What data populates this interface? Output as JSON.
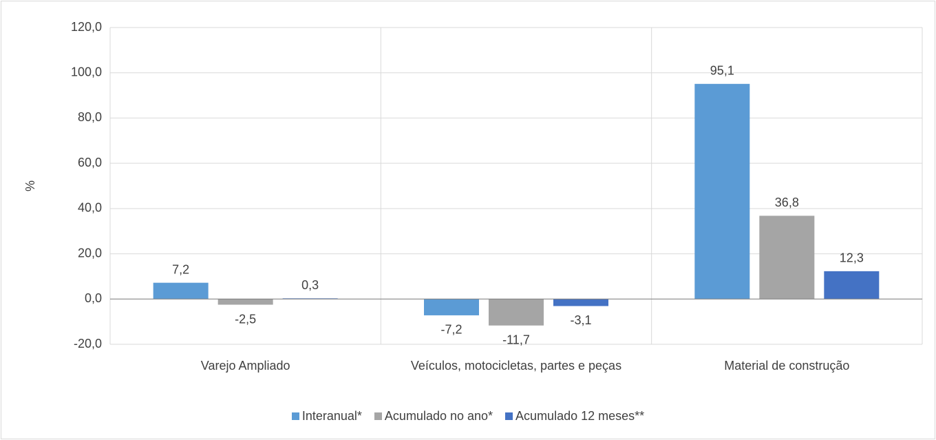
{
  "chart_data": {
    "type": "bar",
    "y_label": "%",
    "categories": [
      "Varejo Ampliado",
      "Veículos, motocicletas, partes e peças",
      "Material de construção"
    ],
    "series": [
      {
        "name": "Interanual*",
        "color": "#5b9bd5",
        "values": [
          7.2,
          -7.2,
          95.1
        ],
        "value_labels": [
          "7,2",
          "-7,2",
          "95,1"
        ]
      },
      {
        "name": "Acumulado no ano*",
        "color": "#a5a5a5",
        "values": [
          -2.5,
          -11.7,
          36.8
        ],
        "value_labels": [
          "-2,5",
          "-11,7",
          "36,8"
        ]
      },
      {
        "name": "Acumulado 12 meses**",
        "color": "#4472c4",
        "values": [
          0.3,
          -3.1,
          12.3
        ],
        "value_labels": [
          "0,3",
          "-3,1",
          "12,3"
        ]
      }
    ],
    "ylim": [
      -20,
      120
    ],
    "yticks": [
      {
        "value": -20,
        "label": "-20,0"
      },
      {
        "value": 0,
        "label": "0,0"
      },
      {
        "value": 20,
        "label": "20,0"
      },
      {
        "value": 40,
        "label": "40,0"
      },
      {
        "value": 60,
        "label": "60,0"
      },
      {
        "value": 80,
        "label": "80,0"
      },
      {
        "value": 100,
        "label": "100,0"
      },
      {
        "value": 120,
        "label": "120,0"
      }
    ],
    "grid": true,
    "legend": "bottom"
  }
}
